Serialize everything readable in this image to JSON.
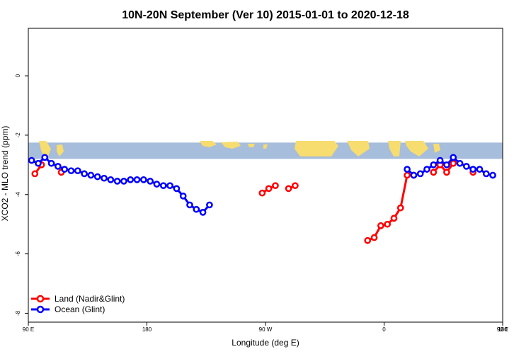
{
  "chart_data": {
    "type": "line",
    "title": "10N-20N September (Ver 10)   2015-01-01 to 2020-12-18",
    "xlabel": "Longitude (deg E)",
    "ylabel": "XCO2 - MLO trend (ppm)",
    "xlim": [
      90,
      450
    ],
    "ylim": [
      -8.3,
      1.6
    ],
    "x_ticks": [
      {
        "value": 90,
        "label": "90 E"
      },
      {
        "value": 180,
        "label": "180"
      },
      {
        "value": 270,
        "label": "90 W"
      },
      {
        "value": 360,
        "label": "0"
      },
      {
        "value": 450,
        "label": "90 E"
      },
      {
        "value": 540,
        "label": "180"
      }
    ],
    "y_ticks": [
      {
        "value": 0,
        "label": "0"
      },
      {
        "value": -2,
        "label": "-2"
      },
      {
        "value": -4,
        "label": "-4"
      },
      {
        "value": -6,
        "label": "-6"
      },
      {
        "value": -8,
        "label": "-8"
      }
    ],
    "map_strip": {
      "y_range": [
        -2.25,
        -2.8
      ],
      "ocean_color": "#a6bddb",
      "land_color": "#f7dc6f"
    },
    "series": [
      {
        "name": "Land (Nadir&Glint)",
        "color": "#ff0000",
        "segments": [
          [
            [
              95,
              -3.3
            ],
            [
              100,
              -3.0
            ]
          ],
          [
            [
              115,
              -3.25
            ]
          ],
          [
            [
              267.5,
              -3.95
            ],
            [
              272.5,
              -3.8
            ],
            [
              277.5,
              -3.7
            ]
          ],
          [
            [
              287.5,
              -3.8
            ],
            [
              292.5,
              -3.7
            ]
          ],
          [
            [
              347.5,
              -5.55
            ],
            [
              352.5,
              -5.45
            ],
            [
              357.5,
              -5.05
            ],
            [
              362.5,
              -5.0
            ],
            [
              367.5,
              -4.8
            ],
            [
              372.5,
              -4.45
            ],
            [
              377.5,
              -3.35
            ],
            [
              382.5,
              -3.35
            ]
          ],
          [
            [
              397.5,
              -3.25
            ],
            [
              402.5,
              -3.0
            ],
            [
              407.5,
              -3.25
            ],
            [
              412.5,
              -2.95
            ]
          ],
          [
            [
              427.5,
              -3.25
            ]
          ]
        ]
      },
      {
        "name": "Ocean (Glint)",
        "color": "#0000ff",
        "segments": [
          [
            [
              92.5,
              -2.85
            ],
            [
              97.5,
              -2.95
            ],
            [
              102.5,
              -2.75
            ],
            [
              107.5,
              -2.95
            ],
            [
              112.5,
              -3.05
            ],
            [
              117.5,
              -3.15
            ],
            [
              122.5,
              -3.2
            ],
            [
              127.5,
              -3.2
            ],
            [
              132.5,
              -3.3
            ],
            [
              137.5,
              -3.35
            ],
            [
              142.5,
              -3.4
            ],
            [
              147.5,
              -3.45
            ],
            [
              152.5,
              -3.5
            ],
            [
              157.5,
              -3.55
            ],
            [
              162.5,
              -3.55
            ],
            [
              167.5,
              -3.5
            ],
            [
              172.5,
              -3.5
            ],
            [
              177.5,
              -3.5
            ],
            [
              182.5,
              -3.55
            ],
            [
              187.5,
              -3.65
            ],
            [
              192.5,
              -3.7
            ],
            [
              197.5,
              -3.7
            ],
            [
              202.5,
              -3.8
            ],
            [
              207.5,
              -4.05
            ],
            [
              212.5,
              -4.35
            ],
            [
              217.5,
              -4.5
            ],
            [
              222.5,
              -4.6
            ],
            [
              227.5,
              -4.35
            ]
          ],
          [
            [
              377.5,
              -3.15
            ],
            [
              382.5,
              -3.35
            ],
            [
              387.5,
              -3.3
            ],
            [
              392.5,
              -3.15
            ],
            [
              397.5,
              -3.0
            ],
            [
              402.5,
              -2.85
            ],
            [
              407.5,
              -3.0
            ],
            [
              412.5,
              -2.75
            ],
            [
              417.5,
              -2.95
            ],
            [
              422.5,
              -3.05
            ],
            [
              427.5,
              -3.15
            ],
            [
              432.5,
              -3.15
            ],
            [
              437.5,
              -3.3
            ],
            [
              442.5,
              -3.35
            ]
          ]
        ]
      }
    ],
    "legend": {
      "position": "bottom-left"
    }
  }
}
